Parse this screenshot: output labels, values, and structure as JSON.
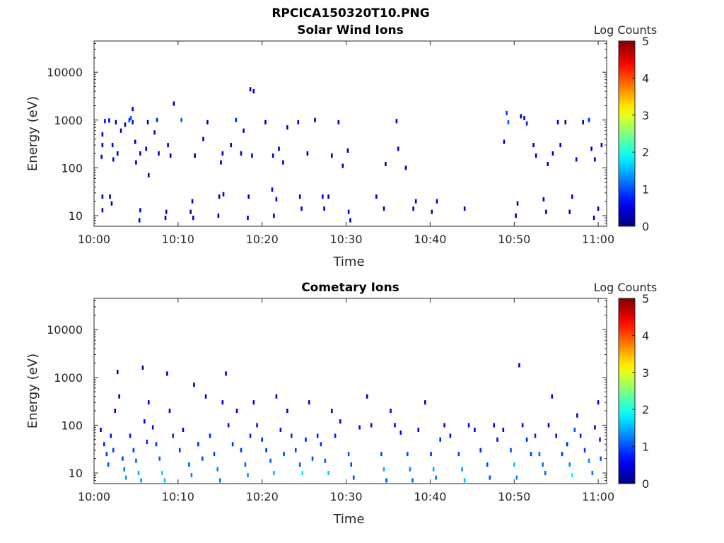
{
  "figure": {
    "title": "RPCICA150320T10.PNG"
  },
  "chart_data": [
    {
      "type": "heatmap",
      "title": "Solar Wind Ions",
      "xlabel": "Time",
      "ylabel": "Energy (eV)",
      "x_tick_labels": [
        "10:00",
        "10:10",
        "10:20",
        "10:30",
        "10:40",
        "10:50",
        "11:00"
      ],
      "x_ticks_minutes": [
        0,
        10,
        20,
        30,
        40,
        50,
        60
      ],
      "xlim_minutes": [
        0,
        61
      ],
      "y_scale": "log",
      "ylim": [
        6,
        45000
      ],
      "y_tick_labels": [
        "10",
        "100",
        "1000",
        "10000"
      ],
      "y_ticks": [
        10,
        100,
        1000,
        10000
      ],
      "colorbar": {
        "label": "Log Counts",
        "range": [
          0,
          5
        ],
        "tick_labels": [
          "0",
          "1",
          "2",
          "3",
          "4",
          "5"
        ],
        "colormap": "jet"
      },
      "cells": [
        [
          1.0,
          25,
          0.4
        ],
        [
          1.0,
          13,
          0.3
        ],
        [
          1.0,
          300,
          0.4
        ],
        [
          1.0,
          500,
          0.6
        ],
        [
          0.9,
          170,
          0.5
        ],
        [
          1.3,
          950,
          0.7
        ],
        [
          1.8,
          980,
          0.6
        ],
        [
          1.9,
          25,
          0.4
        ],
        [
          2.1,
          18,
          0.4
        ],
        [
          2.2,
          300,
          0.3
        ],
        [
          2.3,
          150,
          0.4
        ],
        [
          2.6,
          900,
          0.3
        ],
        [
          2.8,
          200,
          0.3
        ],
        [
          3.2,
          600,
          0.3
        ],
        [
          3.7,
          800,
          0.4
        ],
        [
          4.2,
          1000,
          0.9
        ],
        [
          4.4,
          1100,
          1.1
        ],
        [
          4.6,
          900,
          0.7
        ],
        [
          4.6,
          1700,
          0.3
        ],
        [
          4.9,
          350,
          0.3
        ],
        [
          5.0,
          130,
          0.4
        ],
        [
          5.4,
          8,
          0.4
        ],
        [
          5.5,
          13,
          0.5
        ],
        [
          5.5,
          200,
          0.4
        ],
        [
          6.2,
          250,
          0.5
        ],
        [
          6.4,
          900,
          0.3
        ],
        [
          6.5,
          70,
          0.3
        ],
        [
          7.2,
          550,
          0.3
        ],
        [
          7.5,
          1000,
          0.8
        ],
        [
          7.7,
          200,
          0.4
        ],
        [
          8.5,
          9,
          0.5
        ],
        [
          8.6,
          12,
          0.4
        ],
        [
          8.8,
          300,
          0.3
        ],
        [
          9.1,
          180,
          0.3
        ],
        [
          9.5,
          2200,
          0.3
        ],
        [
          10.4,
          1000,
          1.1
        ],
        [
          11.5,
          12,
          0.3
        ],
        [
          11.7,
          20,
          0.4
        ],
        [
          11.8,
          9,
          0.4
        ],
        [
          12.0,
          180,
          0.3
        ],
        [
          13.0,
          400,
          0.3
        ],
        [
          13.5,
          900,
          0.4
        ],
        [
          14.8,
          10,
          0.3
        ],
        [
          14.9,
          25,
          0.3
        ],
        [
          15.4,
          28,
          0.4
        ],
        [
          15.1,
          130,
          0.3
        ],
        [
          15.3,
          200,
          0.3
        ],
        [
          16.3,
          300,
          0.4
        ],
        [
          16.9,
          1000,
          0.8
        ],
        [
          17.5,
          200,
          0.4
        ],
        [
          17.8,
          600,
          0.3
        ],
        [
          18.3,
          9,
          0.4
        ],
        [
          18.4,
          25,
          0.4
        ],
        [
          18.6,
          4400,
          0.3
        ],
        [
          18.8,
          180,
          0.5
        ],
        [
          19.0,
          4000,
          0.3
        ],
        [
          20.4,
          900,
          0.3
        ],
        [
          21.2,
          35,
          0.5
        ],
        [
          21.3,
          180,
          0.4
        ],
        [
          21.4,
          10,
          0.3
        ],
        [
          21.7,
          22,
          0.4
        ],
        [
          22.0,
          250,
          0.3
        ],
        [
          22.5,
          130,
          0.4
        ],
        [
          23.0,
          700,
          0.3
        ],
        [
          24.3,
          900,
          0.6
        ],
        [
          24.5,
          25,
          0.4
        ],
        [
          24.7,
          14,
          0.4
        ],
        [
          25.4,
          200,
          0.3
        ],
        [
          26.3,
          1000,
          0.4
        ],
        [
          27.2,
          25,
          0.5
        ],
        [
          27.4,
          14,
          0.4
        ],
        [
          27.9,
          25,
          0.4
        ],
        [
          28.3,
          180,
          0.3
        ],
        [
          29.1,
          900,
          0.3
        ],
        [
          29.6,
          110,
          0.3
        ],
        [
          30.3,
          12,
          0.5
        ],
        [
          30.5,
          8,
          0.5
        ],
        [
          30.2,
          230,
          0.3
        ],
        [
          33.6,
          25,
          0.3
        ],
        [
          34.5,
          14,
          0.4
        ],
        [
          34.7,
          120,
          0.3
        ],
        [
          36.0,
          950,
          0.5
        ],
        [
          36.2,
          250,
          0.3
        ],
        [
          37.1,
          100,
          0.3
        ],
        [
          38.0,
          14,
          0.3
        ],
        [
          38.3,
          20,
          0.4
        ],
        [
          40.2,
          12,
          0.4
        ],
        [
          40.8,
          20,
          0.3
        ],
        [
          44.1,
          14,
          0.3
        ],
        [
          48.8,
          350,
          0.5
        ],
        [
          49.1,
          1400,
          0.9
        ],
        [
          49.3,
          900,
          1.1
        ],
        [
          50.2,
          10,
          0.3
        ],
        [
          50.4,
          18,
          0.4
        ],
        [
          50.8,
          1200,
          0.4
        ],
        [
          51.2,
          1100,
          0.6
        ],
        [
          51.5,
          850,
          0.8
        ],
        [
          52.3,
          300,
          0.3
        ],
        [
          52.6,
          180,
          0.4
        ],
        [
          53.5,
          22,
          0.4
        ],
        [
          53.8,
          12,
          0.3
        ],
        [
          54.0,
          120,
          0.3
        ],
        [
          54.6,
          200,
          0.3
        ],
        [
          55.2,
          900,
          0.4
        ],
        [
          55.5,
          300,
          0.3
        ],
        [
          56.1,
          900,
          0.3
        ],
        [
          56.6,
          12,
          0.3
        ],
        [
          56.9,
          25,
          0.5
        ],
        [
          57.4,
          150,
          0.5
        ],
        [
          58.2,
          900,
          0.3
        ],
        [
          58.9,
          1000,
          0.8
        ],
        [
          59.2,
          250,
          0.4
        ],
        [
          59.6,
          150,
          0.4
        ],
        [
          59.5,
          9,
          0.3
        ],
        [
          60.0,
          14,
          0.3
        ],
        [
          60.4,
          300,
          0.4
        ]
      ]
    },
    {
      "type": "heatmap",
      "title": "Cometary Ions",
      "xlabel": "Time",
      "ylabel": "Energy (eV)",
      "x_tick_labels": [
        "10:00",
        "10:10",
        "10:20",
        "10:30",
        "10:40",
        "10:50",
        "11:00"
      ],
      "x_ticks_minutes": [
        0,
        10,
        20,
        30,
        40,
        50,
        60
      ],
      "xlim_minutes": [
        0,
        61
      ],
      "y_scale": "log",
      "ylim": [
        6,
        45000
      ],
      "y_tick_labels": [
        "10",
        "100",
        "1000",
        "10000"
      ],
      "y_ticks": [
        10,
        100,
        1000,
        10000
      ],
      "colorbar": {
        "label": "Log Counts",
        "range": [
          0,
          5
        ],
        "tick_labels": [
          "0",
          "1",
          "2",
          "3",
          "4",
          "5"
        ],
        "colormap": "jet"
      },
      "cells": [
        [
          0.8,
          80,
          0.5
        ],
        [
          1.2,
          40,
          0.8
        ],
        [
          1.5,
          25,
          0.9
        ],
        [
          1.7,
          15,
          1.0
        ],
        [
          2.0,
          60,
          0.7
        ],
        [
          2.3,
          30,
          0.9
        ],
        [
          2.5,
          200,
          0.5
        ],
        [
          2.8,
          1300,
          0.4
        ],
        [
          3.0,
          400,
          0.5
        ],
        [
          3.4,
          20,
          0.9
        ],
        [
          3.6,
          12,
          1.2
        ],
        [
          3.8,
          8,
          1.4
        ],
        [
          4.3,
          60,
          0.7
        ],
        [
          4.7,
          30,
          0.9
        ],
        [
          5.0,
          18,
          1.1
        ],
        [
          5.3,
          10,
          1.5
        ],
        [
          5.6,
          7,
          1.4
        ],
        [
          5.8,
          1600,
          0.4
        ],
        [
          6.0,
          120,
          0.6
        ],
        [
          6.3,
          45,
          0.8
        ],
        [
          6.5,
          300,
          0.5
        ],
        [
          7.0,
          90,
          0.7
        ],
        [
          7.4,
          40,
          0.9
        ],
        [
          7.8,
          20,
          1.1
        ],
        [
          8.1,
          10,
          1.7
        ],
        [
          8.4,
          7,
          1.6
        ],
        [
          8.7,
          1200,
          0.4
        ],
        [
          9.0,
          200,
          0.6
        ],
        [
          9.4,
          60,
          0.8
        ],
        [
          10.2,
          30,
          0.9
        ],
        [
          10.6,
          80,
          0.6
        ],
        [
          11.3,
          15,
          1.1
        ],
        [
          11.6,
          9,
          1.3
        ],
        [
          11.9,
          700,
          0.4
        ],
        [
          12.4,
          40,
          0.8
        ],
        [
          12.9,
          20,
          1.0
        ],
        [
          13.3,
          400,
          0.5
        ],
        [
          13.8,
          60,
          0.8
        ],
        [
          14.3,
          25,
          1.0
        ],
        [
          14.7,
          12,
          1.3
        ],
        [
          15.0,
          7,
          1.2
        ],
        [
          15.3,
          300,
          0.5
        ],
        [
          15.7,
          1200,
          0.4
        ],
        [
          16.0,
          100,
          0.7
        ],
        [
          16.5,
          40,
          0.9
        ],
        [
          17.0,
          200,
          0.6
        ],
        [
          17.5,
          30,
          0.9
        ],
        [
          18.0,
          15,
          1.1
        ],
        [
          18.3,
          9,
          1.4
        ],
        [
          18.6,
          60,
          0.8
        ],
        [
          19.0,
          300,
          0.5
        ],
        [
          19.4,
          100,
          0.7
        ],
        [
          20.0,
          50,
          0.8
        ],
        [
          20.5,
          30,
          0.9
        ],
        [
          21.0,
          18,
          1.1
        ],
        [
          21.4,
          10,
          1.5
        ],
        [
          21.7,
          400,
          0.5
        ],
        [
          22.2,
          80,
          0.7
        ],
        [
          22.6,
          25,
          1.0
        ],
        [
          23.0,
          200,
          0.6
        ],
        [
          23.5,
          60,
          0.8
        ],
        [
          24.0,
          30,
          0.9
        ],
        [
          24.5,
          15,
          1.1
        ],
        [
          24.8,
          10,
          1.8
        ],
        [
          25.2,
          50,
          0.8
        ],
        [
          25.6,
          300,
          0.5
        ],
        [
          26.0,
          20,
          1.0
        ],
        [
          26.6,
          60,
          0.8
        ],
        [
          27.0,
          40,
          0.9
        ],
        [
          27.5,
          18,
          1.1
        ],
        [
          27.9,
          10,
          1.6
        ],
        [
          28.3,
          200,
          0.5
        ],
        [
          28.7,
          60,
          0.8
        ],
        [
          29.3,
          120,
          0.6
        ],
        [
          30.3,
          25,
          1.1
        ],
        [
          30.6,
          15,
          1.0
        ],
        [
          30.9,
          8,
          1.0
        ],
        [
          31.6,
          90,
          0.6
        ],
        [
          32.5,
          400,
          0.4
        ],
        [
          33.0,
          100,
          0.6
        ],
        [
          34.2,
          25,
          1.0
        ],
        [
          34.5,
          12,
          1.5
        ],
        [
          34.8,
          7,
          1.0
        ],
        [
          35.3,
          200,
          0.5
        ],
        [
          35.8,
          100,
          0.6
        ],
        [
          36.5,
          70,
          0.7
        ],
        [
          37.3,
          25,
          1.0
        ],
        [
          37.6,
          12,
          1.3
        ],
        [
          37.9,
          7,
          1.1
        ],
        [
          38.6,
          80,
          0.6
        ],
        [
          39.4,
          300,
          0.4
        ],
        [
          40.1,
          25,
          0.9
        ],
        [
          40.4,
          12,
          1.5
        ],
        [
          40.7,
          8,
          1.2
        ],
        [
          41.2,
          50,
          0.8
        ],
        [
          41.7,
          100,
          0.6
        ],
        [
          42.4,
          60,
          0.7
        ],
        [
          43.4,
          25,
          0.9
        ],
        [
          43.8,
          12,
          1.4
        ],
        [
          44.1,
          7,
          1.6
        ],
        [
          44.6,
          100,
          0.6
        ],
        [
          45.3,
          80,
          0.6
        ],
        [
          46.0,
          30,
          0.8
        ],
        [
          46.8,
          15,
          1.0
        ],
        [
          47.1,
          8,
          1.0
        ],
        [
          47.6,
          100,
          0.6
        ],
        [
          48.0,
          50,
          0.7
        ],
        [
          48.7,
          80,
          0.6
        ],
        [
          49.6,
          30,
          1.0
        ],
        [
          50.0,
          15,
          1.6
        ],
        [
          50.3,
          8,
          1.3
        ],
        [
          50.6,
          1800,
          0.4
        ],
        [
          51.0,
          100,
          0.7
        ],
        [
          51.5,
          50,
          0.8
        ],
        [
          52.0,
          25,
          0.9
        ],
        [
          52.5,
          60,
          0.8
        ],
        [
          53.0,
          25,
          1.1
        ],
        [
          53.4,
          15,
          1.2
        ],
        [
          53.7,
          10,
          1.1
        ],
        [
          54.1,
          100,
          0.6
        ],
        [
          54.5,
          400,
          0.5
        ],
        [
          55.0,
          60,
          0.7
        ],
        [
          55.7,
          25,
          0.9
        ],
        [
          56.3,
          40,
          0.8
        ],
        [
          56.6,
          15,
          1.3
        ],
        [
          56.9,
          9,
          1.9
        ],
        [
          57.2,
          80,
          1.0
        ],
        [
          57.5,
          160,
          0.5
        ],
        [
          57.9,
          60,
          0.8
        ],
        [
          58.4,
          30,
          0.9
        ],
        [
          58.9,
          18,
          1.3
        ],
        [
          59.3,
          10,
          1.2
        ],
        [
          59.6,
          90,
          0.6
        ],
        [
          60.0,
          300,
          0.5
        ],
        [
          60.2,
          50,
          0.8
        ],
        [
          60.3,
          20,
          1.0
        ]
      ]
    }
  ]
}
